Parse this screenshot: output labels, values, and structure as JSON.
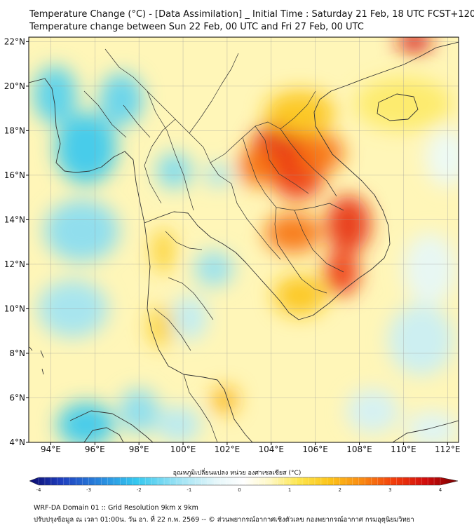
{
  "title": {
    "line1": "Temperature Change (°C) - [Data Assimilation] _ Initial Time : Saturday 21 Feb, 18 UTC FCST+120",
    "line2": "Temperature change between Sun 22 Feb, 00 UTC and Fri 27 Feb, 00 UTC"
  },
  "axes": {
    "lon_range": [
      93,
      112.5
    ],
    "lat_range": [
      4,
      22.2
    ],
    "x_ticks": [
      {
        "value": 94,
        "label": "94°E"
      },
      {
        "value": 96,
        "label": "96°E"
      },
      {
        "value": 98,
        "label": "98°E"
      },
      {
        "value": 100,
        "label": "100°E"
      },
      {
        "value": 102,
        "label": "102°E"
      },
      {
        "value": 104,
        "label": "104°E"
      },
      {
        "value": 106,
        "label": "106°E"
      },
      {
        "value": 108,
        "label": "108°E"
      },
      {
        "value": 110,
        "label": "110°E"
      },
      {
        "value": 112,
        "label": "112°E"
      }
    ],
    "y_ticks": [
      {
        "value": 22,
        "label": "22°N"
      },
      {
        "value": 20,
        "label": "20°N"
      },
      {
        "value": 18,
        "label": "18°N"
      },
      {
        "value": 16,
        "label": "16°N"
      },
      {
        "value": 14,
        "label": "14°N"
      },
      {
        "value": 12,
        "label": "12°N"
      },
      {
        "value": 10,
        "label": "10°N"
      },
      {
        "value": 8,
        "label": "8°N"
      },
      {
        "value": 6,
        "label": "6°N"
      },
      {
        "value": 4,
        "label": "4°N"
      }
    ]
  },
  "colorbar": {
    "label": "อุณหภูมิเปลี่ยนแปลง หน่วย องศาเซลเซียส (°C)",
    "min": -4,
    "max": 4,
    "ticks": [
      {
        "value": -4,
        "label": "-4"
      },
      {
        "value": -3,
        "label": "-3"
      },
      {
        "value": -2,
        "label": "-2"
      },
      {
        "value": -1,
        "label": "-1"
      },
      {
        "value": 0,
        "label": "0"
      },
      {
        "value": 1,
        "label": "1"
      },
      {
        "value": 2,
        "label": "2"
      },
      {
        "value": 3,
        "label": "3"
      },
      {
        "value": 4,
        "label": "4"
      }
    ],
    "stops": [
      {
        "value": -4,
        "color": "#0b0b6e"
      },
      {
        "value": -3.4,
        "color": "#1f3fbf"
      },
      {
        "value": -2.6,
        "color": "#2a8fe0"
      },
      {
        "value": -2,
        "color": "#35c8ef"
      },
      {
        "value": -1.2,
        "color": "#9fe3f4"
      },
      {
        "value": -0.5,
        "color": "#e6f7fa"
      },
      {
        "value": 0,
        "color": "#ffffff"
      },
      {
        "value": 0.5,
        "color": "#fff8c4"
      },
      {
        "value": 1,
        "color": "#fde64f"
      },
      {
        "value": 1.6,
        "color": "#fcc419"
      },
      {
        "value": 2.2,
        "color": "#f98a12"
      },
      {
        "value": 2.8,
        "color": "#f23e0c"
      },
      {
        "value": 3.4,
        "color": "#d10d0d"
      },
      {
        "value": 4,
        "color": "#7a0000"
      }
    ]
  },
  "field": {
    "background_value": 0.55,
    "anomalies": [
      {
        "lon": 104.4,
        "lat": 17.2,
        "value": 3.1,
        "rx": 1.3,
        "ry": 1.2
      },
      {
        "lon": 105.2,
        "lat": 16.0,
        "value": 2.9,
        "rx": 1.2,
        "ry": 1.1
      },
      {
        "lon": 103.4,
        "lat": 16.4,
        "value": 2.4,
        "rx": 0.9,
        "ry": 0.9
      },
      {
        "lon": 106.2,
        "lat": 17.0,
        "value": 2.4,
        "rx": 1.1,
        "ry": 0.9
      },
      {
        "lon": 107.5,
        "lat": 13.8,
        "value": 3.0,
        "rx": 1.0,
        "ry": 1.3
      },
      {
        "lon": 107.2,
        "lat": 11.6,
        "value": 2.9,
        "rx": 0.8,
        "ry": 1.0
      },
      {
        "lon": 105.0,
        "lat": 13.4,
        "value": 2.4,
        "rx": 1.3,
        "ry": 0.9
      },
      {
        "lon": 105.3,
        "lat": 10.6,
        "value": 1.6,
        "rx": 1.2,
        "ry": 0.9
      },
      {
        "lon": 105.3,
        "lat": 18.8,
        "value": 1.6,
        "rx": 1.6,
        "ry": 1.0
      },
      {
        "lon": 110.5,
        "lat": 22.0,
        "value": 3.3,
        "rx": 0.8,
        "ry": 0.5
      },
      {
        "lon": 110.0,
        "lat": 19.2,
        "value": 0.9,
        "rx": 2.2,
        "ry": 1.2
      },
      {
        "lon": 101.9,
        "lat": 5.9,
        "value": 1.8,
        "rx": 0.6,
        "ry": 0.6
      },
      {
        "lon": 99.0,
        "lat": 9.2,
        "value": 1.4,
        "rx": 0.6,
        "ry": 0.9
      },
      {
        "lon": 99.1,
        "lat": 12.6,
        "value": 1.4,
        "rx": 0.5,
        "ry": 1.0
      },
      {
        "lon": 95.6,
        "lat": 17.2,
        "value": -2.0,
        "rx": 1.4,
        "ry": 1.6
      },
      {
        "lon": 94.2,
        "lat": 19.6,
        "value": -1.8,
        "rx": 1.0,
        "ry": 1.3
      },
      {
        "lon": 97.2,
        "lat": 19.4,
        "value": -1.7,
        "rx": 1.0,
        "ry": 1.2
      },
      {
        "lon": 95.4,
        "lat": 13.5,
        "value": -1.4,
        "rx": 1.7,
        "ry": 1.4
      },
      {
        "lon": 95.0,
        "lat": 10.0,
        "value": -1.2,
        "rx": 1.6,
        "ry": 1.3
      },
      {
        "lon": 95.6,
        "lat": 4.8,
        "value": -2.0,
        "rx": 1.3,
        "ry": 1.0
      },
      {
        "lon": 99.6,
        "lat": 16.2,
        "value": -1.5,
        "rx": 0.8,
        "ry": 0.8
      },
      {
        "lon": 101.6,
        "lat": 16.0,
        "value": -1.2,
        "rx": 0.6,
        "ry": 0.5
      },
      {
        "lon": 101.4,
        "lat": 11.8,
        "value": -1.3,
        "rx": 0.9,
        "ry": 0.8
      },
      {
        "lon": 100.3,
        "lat": 9.6,
        "value": -0.9,
        "rx": 0.8,
        "ry": 1.0
      },
      {
        "lon": 98.0,
        "lat": 5.4,
        "value": -1.4,
        "rx": 0.9,
        "ry": 1.0
      },
      {
        "lon": 99.8,
        "lat": 4.8,
        "value": -1.0,
        "rx": 1.0,
        "ry": 0.8
      },
      {
        "lon": 110.8,
        "lat": 8.6,
        "value": -0.8,
        "rx": 1.5,
        "ry": 1.6
      },
      {
        "lon": 108.6,
        "lat": 5.4,
        "value": -0.7,
        "rx": 1.2,
        "ry": 1.0
      },
      {
        "lon": 111.2,
        "lat": 11.8,
        "value": -0.5,
        "rx": 1.2,
        "ry": 1.6
      },
      {
        "lon": 112.0,
        "lat": 16.8,
        "value": -0.4,
        "rx": 1.0,
        "ry": 1.3
      },
      {
        "lon": 111.3,
        "lat": 4.6,
        "value": -0.6,
        "rx": 1.2,
        "ry": 0.8
      }
    ]
  },
  "footer": {
    "line1": "WRF-DA Domain 01 :: Grid Resolution 9km x 9km",
    "line2": "ปรับปรุงข้อมูล ณ เวลา 01:00น. วัน อา. ที่ 22 ก.พ. 2569 -- © ส่วนพยากรณ์อากาศเชิงตัวเลข กองพยากรณ์อากาศ กรมอุตุนิยมวิทยา"
  }
}
